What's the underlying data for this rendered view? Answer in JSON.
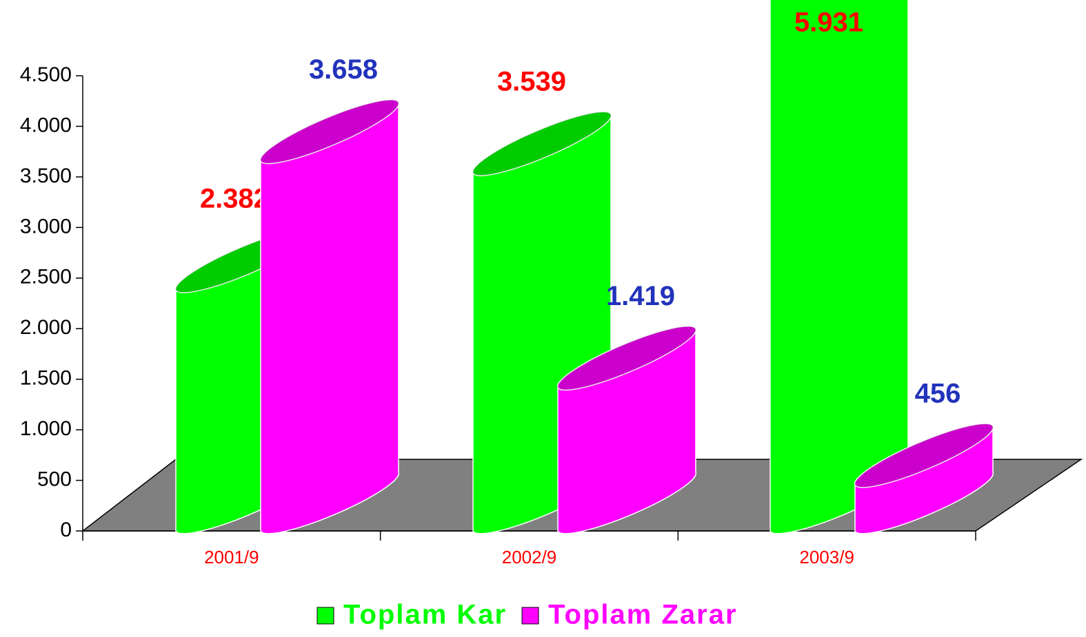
{
  "chart_data": {
    "type": "bar3d",
    "categories": [
      "2001/9",
      "2002/9",
      "2003/9"
    ],
    "series": [
      {
        "name": "Toplam Kar",
        "color": "#00ff00",
        "label_color": "#ff0000",
        "values": [
          2382,
          3539,
          5931
        ],
        "value_labels": [
          "2.382",
          "3.539",
          "5.931"
        ]
      },
      {
        "name": "Toplam Zarar",
        "color": "#ff00ff",
        "label_color": "#2233bb",
        "values": [
          3658,
          1419,
          456
        ],
        "value_labels": [
          "3.658",
          "1.419",
          "456"
        ]
      }
    ],
    "ylim": [
      0,
      4500
    ],
    "yticks": [
      0,
      500,
      {
        "value": 1000,
        "label": "1.000"
      },
      {
        "value": 1500,
        "label": "1.500"
      },
      {
        "value": 2000,
        "label": "2.000"
      },
      {
        "value": 2500,
        "label": "2.500"
      },
      {
        "value": 3000,
        "label": "3.000"
      },
      {
        "value": 3500,
        "label": "3.500"
      },
      {
        "value": 4000,
        "label": "4.000"
      },
      {
        "value": 4500,
        "label": "4.500"
      }
    ],
    "category_color": "#ff0000"
  }
}
